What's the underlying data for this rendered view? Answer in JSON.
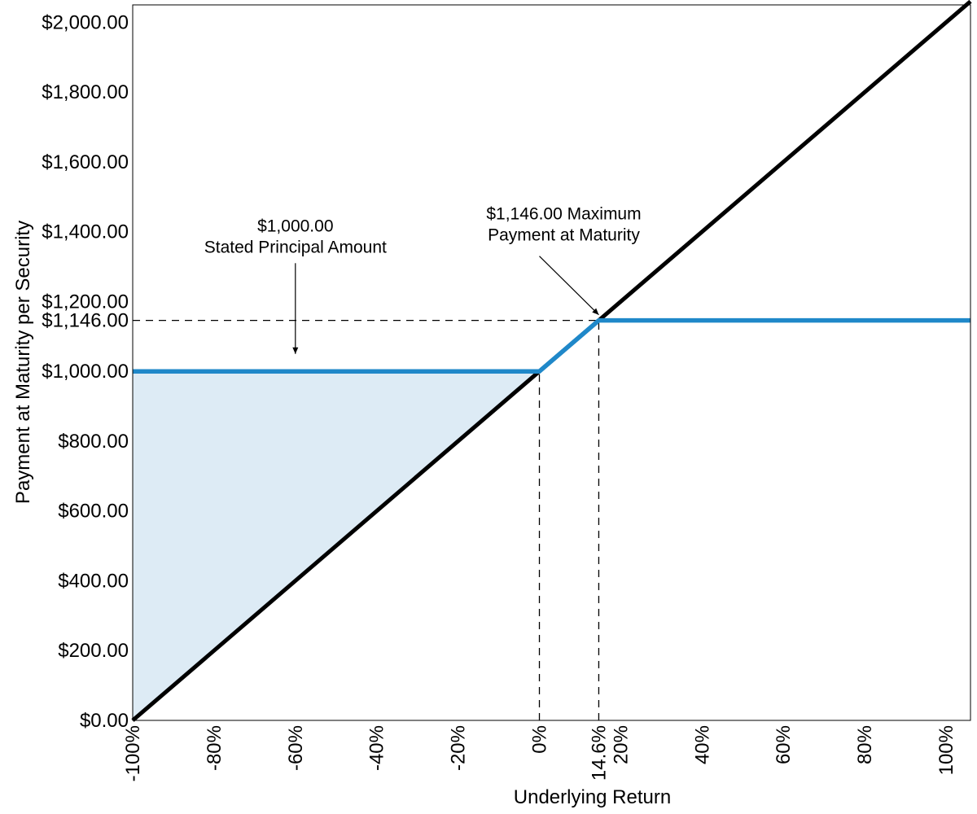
{
  "chart_data": {
    "type": "line",
    "xlabel": "Underlying Return",
    "ylabel": "Payment at Maturity per Security",
    "xlim": [
      -100,
      106
    ],
    "ylim": [
      0,
      2050
    ],
    "x_ticks": [
      {
        "value": -100,
        "label": "-100%"
      },
      {
        "value": -80,
        "label": "-80%"
      },
      {
        "value": -60,
        "label": "-60%"
      },
      {
        "value": -40,
        "label": "-40%"
      },
      {
        "value": -20,
        "label": "-20%"
      },
      {
        "value": 0,
        "label": "0%"
      },
      {
        "value": 14.6,
        "label": "14.6%"
      },
      {
        "value": 20,
        "label": "20%"
      },
      {
        "value": 40,
        "label": "40%"
      },
      {
        "value": 60,
        "label": "60%"
      },
      {
        "value": 80,
        "label": "80%"
      },
      {
        "value": 100,
        "label": "100%"
      }
    ],
    "y_ticks": [
      {
        "value": 0,
        "label": "$0.00"
      },
      {
        "value": 200,
        "label": "$200.00"
      },
      {
        "value": 400,
        "label": "$400.00"
      },
      {
        "value": 600,
        "label": "$600.00"
      },
      {
        "value": 800,
        "label": "$800.00"
      },
      {
        "value": 1000,
        "label": "$1,000.00"
      },
      {
        "value": 1146,
        "label": "$1,146.00"
      },
      {
        "value": 1200,
        "label": "$1,200.00"
      },
      {
        "value": 1400,
        "label": "$1,400.00"
      },
      {
        "value": 1600,
        "label": "$1,600.00"
      },
      {
        "value": 1800,
        "label": "$1,800.00"
      },
      {
        "value": 2000,
        "label": "$2,000.00"
      }
    ],
    "series": [
      {
        "key": "underlying",
        "color": "#000000",
        "x": [
          -100,
          106
        ],
        "y": [
          0,
          2060
        ]
      },
      {
        "key": "security",
        "color": "#1f88c9",
        "x": [
          -100,
          0,
          14.6,
          106
        ],
        "y": [
          1000,
          1000,
          1146,
          1146
        ]
      }
    ],
    "shaded_region": {
      "color": "#ddebf5",
      "x": [
        -100,
        0,
        -100
      ],
      "y": [
        0,
        1000,
        1000
      ]
    },
    "reference_lines": [
      {
        "type": "horizontal",
        "y": 1146,
        "x_from": -100,
        "x_to": 14.6
      },
      {
        "type": "vertical",
        "x": 0,
        "y_from": 0,
        "y_to": 1000
      },
      {
        "type": "vertical",
        "x": 14.6,
        "y_from": 0,
        "y_to": 1146
      }
    ],
    "annotations": [
      {
        "key": "principal",
        "lines": [
          "$1,000.00",
          "Stated Principal Amount"
        ],
        "text_x": -60,
        "text_y": 1400,
        "arrow_from": [
          -60,
          1310
        ],
        "arrow_to": [
          -60,
          1050
        ]
      },
      {
        "key": "maximum",
        "lines": [
          "$1,146.00 Maximum",
          "Payment at Maturity"
        ],
        "text_x": 6,
        "text_y": 1435,
        "arrow_from": [
          0,
          1330
        ],
        "arrow_to": [
          14.6,
          1162
        ]
      }
    ]
  }
}
